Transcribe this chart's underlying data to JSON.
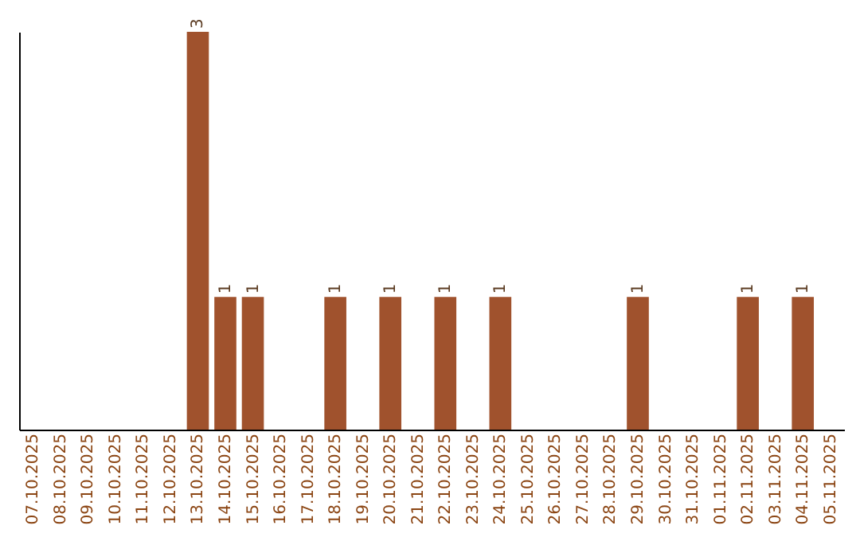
{
  "chart_data": {
    "type": "bar",
    "categories": [
      "07.10.2025",
      "08.10.2025",
      "09.10.2025",
      "10.10.2025",
      "11.10.2025",
      "12.10.2025",
      "13.10.2025",
      "14.10.2025",
      "15.10.2025",
      "16.10.2025",
      "17.10.2025",
      "18.10.2025",
      "19.10.2025",
      "20.10.2025",
      "21.10.2025",
      "22.10.2025",
      "23.10.2025",
      "24.10.2025",
      "25.10.2025",
      "26.10.2025",
      "27.10.2025",
      "28.10.2025",
      "29.10.2025",
      "30.10.2025",
      "31.10.2025",
      "01.11.2025",
      "02.11.2025",
      "03.11.2025",
      "04.11.2025",
      "05.11.2025"
    ],
    "values": [
      0,
      0,
      0,
      0,
      0,
      0,
      3,
      1,
      1,
      0,
      0,
      1,
      0,
      1,
      0,
      1,
      0,
      1,
      0,
      0,
      0,
      0,
      1,
      0,
      0,
      0,
      1,
      0,
      1,
      0
    ],
    "value_labels": [
      null,
      null,
      null,
      null,
      null,
      null,
      "3",
      "1",
      "1",
      null,
      null,
      "1",
      null,
      "1",
      null,
      "1",
      null,
      "1",
      null,
      null,
      null,
      null,
      "1",
      null,
      null,
      null,
      "1",
      null,
      "1",
      null
    ],
    "color": "#a0522d",
    "grid": false,
    "tick_labels": "x"
  }
}
